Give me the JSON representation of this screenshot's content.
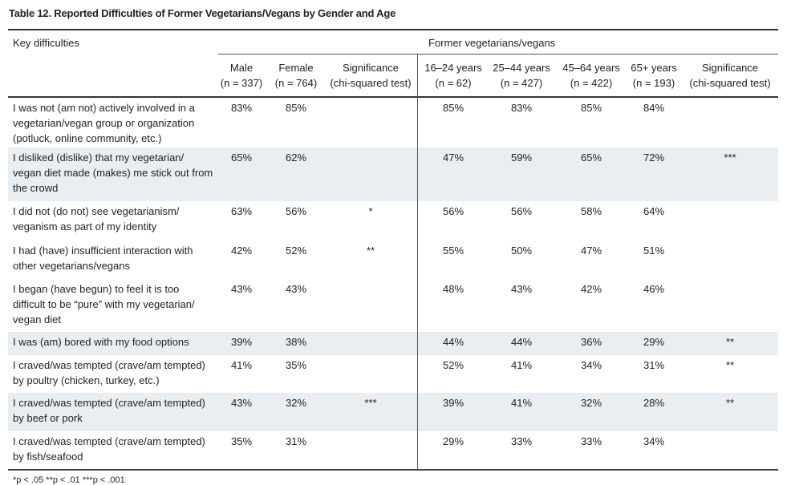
{
  "title": "Table 12. Reported Difficulties of Former Vegetarians/Vegans by Gender and Age",
  "header": {
    "key_col": "Key difficulties",
    "group": "Former vegetarians/vegans",
    "columns": [
      {
        "label": "Male",
        "n": "(n = 337)"
      },
      {
        "label": "Female",
        "n": "(n = 764)"
      },
      {
        "label": "Significance",
        "n": "(chi-squared test)"
      },
      {
        "label": "16–24 years",
        "n": "(n = 62)"
      },
      {
        "label": "25–44 years",
        "n": "(n = 427)"
      },
      {
        "label": "45–64 years",
        "n": "(n = 422)"
      },
      {
        "label": "65+ years",
        "n": "(n = 193)"
      },
      {
        "label": "Significance",
        "n": "(chi-squared test)"
      }
    ]
  },
  "rows": [
    {
      "label": "I was not (am not) actively involved in a vegetarian/vegan group or organization (potluck, online community, etc.)",
      "values": [
        "83%",
        "85%",
        "",
        "85%",
        "83%",
        "85%",
        "84%",
        ""
      ]
    },
    {
      "label": "I disliked (dislike) that my vegetarian/ vegan diet made (makes) me stick out from the crowd",
      "values": [
        "65%",
        "62%",
        "",
        "47%",
        "59%",
        "65%",
        "72%",
        "***"
      ]
    },
    {
      "label": "I did not (do not) see vegetarianism/ veganism as part of my identity",
      "values": [
        "63%",
        "56%",
        "*",
        "56%",
        "56%",
        "58%",
        "64%",
        ""
      ]
    },
    {
      "label": "I had (have) insufficient interaction with other vegetarians/vegans",
      "values": [
        "42%",
        "52%",
        "**",
        "55%",
        "50%",
        "47%",
        "51%",
        ""
      ]
    },
    {
      "label": "I began (have begun) to feel it is too difficult to be “pure” with my vegetarian/ vegan diet",
      "values": [
        "43%",
        "43%",
        "",
        "48%",
        "43%",
        "42%",
        "46%",
        ""
      ]
    },
    {
      "label": "I was (am) bored with my food options",
      "values": [
        "39%",
        "38%",
        "",
        "44%",
        "44%",
        "36%",
        "29%",
        "**"
      ]
    },
    {
      "label": "I craved/was tempted (crave/am tempted) by poultry (chicken, turkey, etc.)",
      "values": [
        "41%",
        "35%",
        "",
        "52%",
        "41%",
        "34%",
        "31%",
        "**"
      ]
    },
    {
      "label": "I craved/was tempted (crave/am tempted) by beef or pork",
      "values": [
        "43%",
        "32%",
        "***",
        "39%",
        "41%",
        "32%",
        "28%",
        "**"
      ]
    },
    {
      "label": "I craved/was tempted (crave/am tempted) by fish/seafood",
      "values": [
        "35%",
        "31%",
        "",
        "29%",
        "33%",
        "33%",
        "34%",
        ""
      ]
    }
  ],
  "footnote": "*p < .05 **p < .01 ***p < .001",
  "colors": {
    "shade": "#e9eef3",
    "rule": "#333333"
  }
}
